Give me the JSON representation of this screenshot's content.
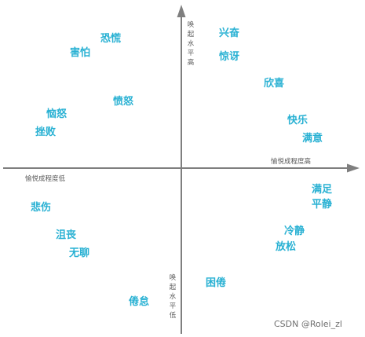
{
  "colors": {
    "axis": "#7f7f7f",
    "emotion_text": "#29b1d3",
    "axis_label_text": "#5a5a5a",
    "watermark_text": "#6f6f6f",
    "background": "#ffffff"
  },
  "axes": {
    "y_top_label": "唤起水平高",
    "y_bottom_label": "唤起水平低",
    "x_right_label": "愉悦成程度高",
    "x_left_label": "愉悦成程度低"
  },
  "emotions": [
    {
      "name": "kongjing",
      "label": "恐慌"
    },
    {
      "name": "haipa",
      "label": "害怕"
    },
    {
      "name": "xingfen",
      "label": "兴奋"
    },
    {
      "name": "jingya",
      "label": "惊讶"
    },
    {
      "name": "xinxi",
      "label": "欣喜"
    },
    {
      "name": "fennu",
      "label": "愤怒"
    },
    {
      "name": "naonu",
      "label": "恼怒"
    },
    {
      "name": "cuobai",
      "label": "挫败"
    },
    {
      "name": "kuaile",
      "label": "快乐"
    },
    {
      "name": "manyi",
      "label": "满意"
    },
    {
      "name": "manzu",
      "label": "满足"
    },
    {
      "name": "pingjing",
      "label": "平静"
    },
    {
      "name": "beishang",
      "label": "悲伤"
    },
    {
      "name": "jusang",
      "label": "沮丧"
    },
    {
      "name": "wuliao",
      "label": "无聊"
    },
    {
      "name": "lengjing",
      "label": "冷静"
    },
    {
      "name": "fangsong",
      "label": "放松"
    },
    {
      "name": "kunjuan",
      "label": "困倦"
    },
    {
      "name": "juandai",
      "label": "倦怠"
    }
  ],
  "watermark": "CSDN @Rolei_zl"
}
